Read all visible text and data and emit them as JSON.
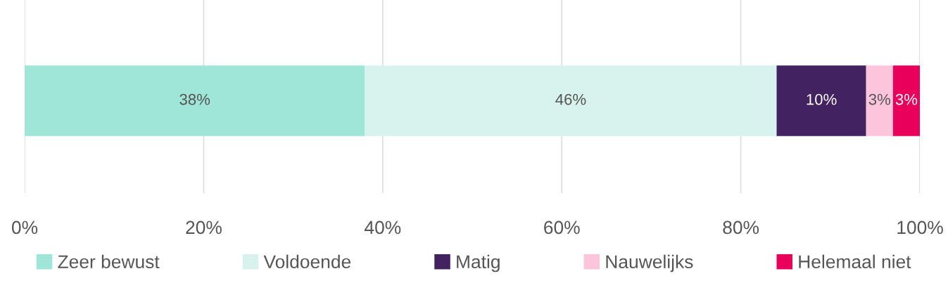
{
  "chart_data": {
    "type": "bar",
    "orientation": "horizontal",
    "stacked": true,
    "categories": [
      null
    ],
    "series": [
      {
        "name": "Zeer bewust",
        "color": "#a0e6d8",
        "values": [
          38
        ],
        "value_labels": [
          "38%"
        ]
      },
      {
        "name": "Voldoende",
        "color": "#d8f3ee",
        "values": [
          46
        ],
        "value_labels": [
          "46%"
        ]
      },
      {
        "name": "Matig",
        "color": "#432261",
        "values": [
          10
        ],
        "value_labels": [
          "10%"
        ]
      },
      {
        "name": "Nauwelijks",
        "color": "#fcc5dc",
        "values": [
          3
        ],
        "value_labels": [
          "3%"
        ]
      },
      {
        "name": "Helemaal niet",
        "color": "#e8005a",
        "values": [
          3
        ],
        "value_labels": [
          "3%"
        ]
      }
    ],
    "xlim": [
      0,
      100
    ],
    "xticks": [
      {
        "value": 0,
        "label": "0%"
      },
      {
        "value": 20,
        "label": "20%"
      },
      {
        "value": 40,
        "label": "40%"
      },
      {
        "value": 60,
        "label": "60%"
      },
      {
        "value": 80,
        "label": "80%"
      },
      {
        "value": 100,
        "label": "100%"
      }
    ],
    "grid": "x",
    "legend": "bottom"
  }
}
